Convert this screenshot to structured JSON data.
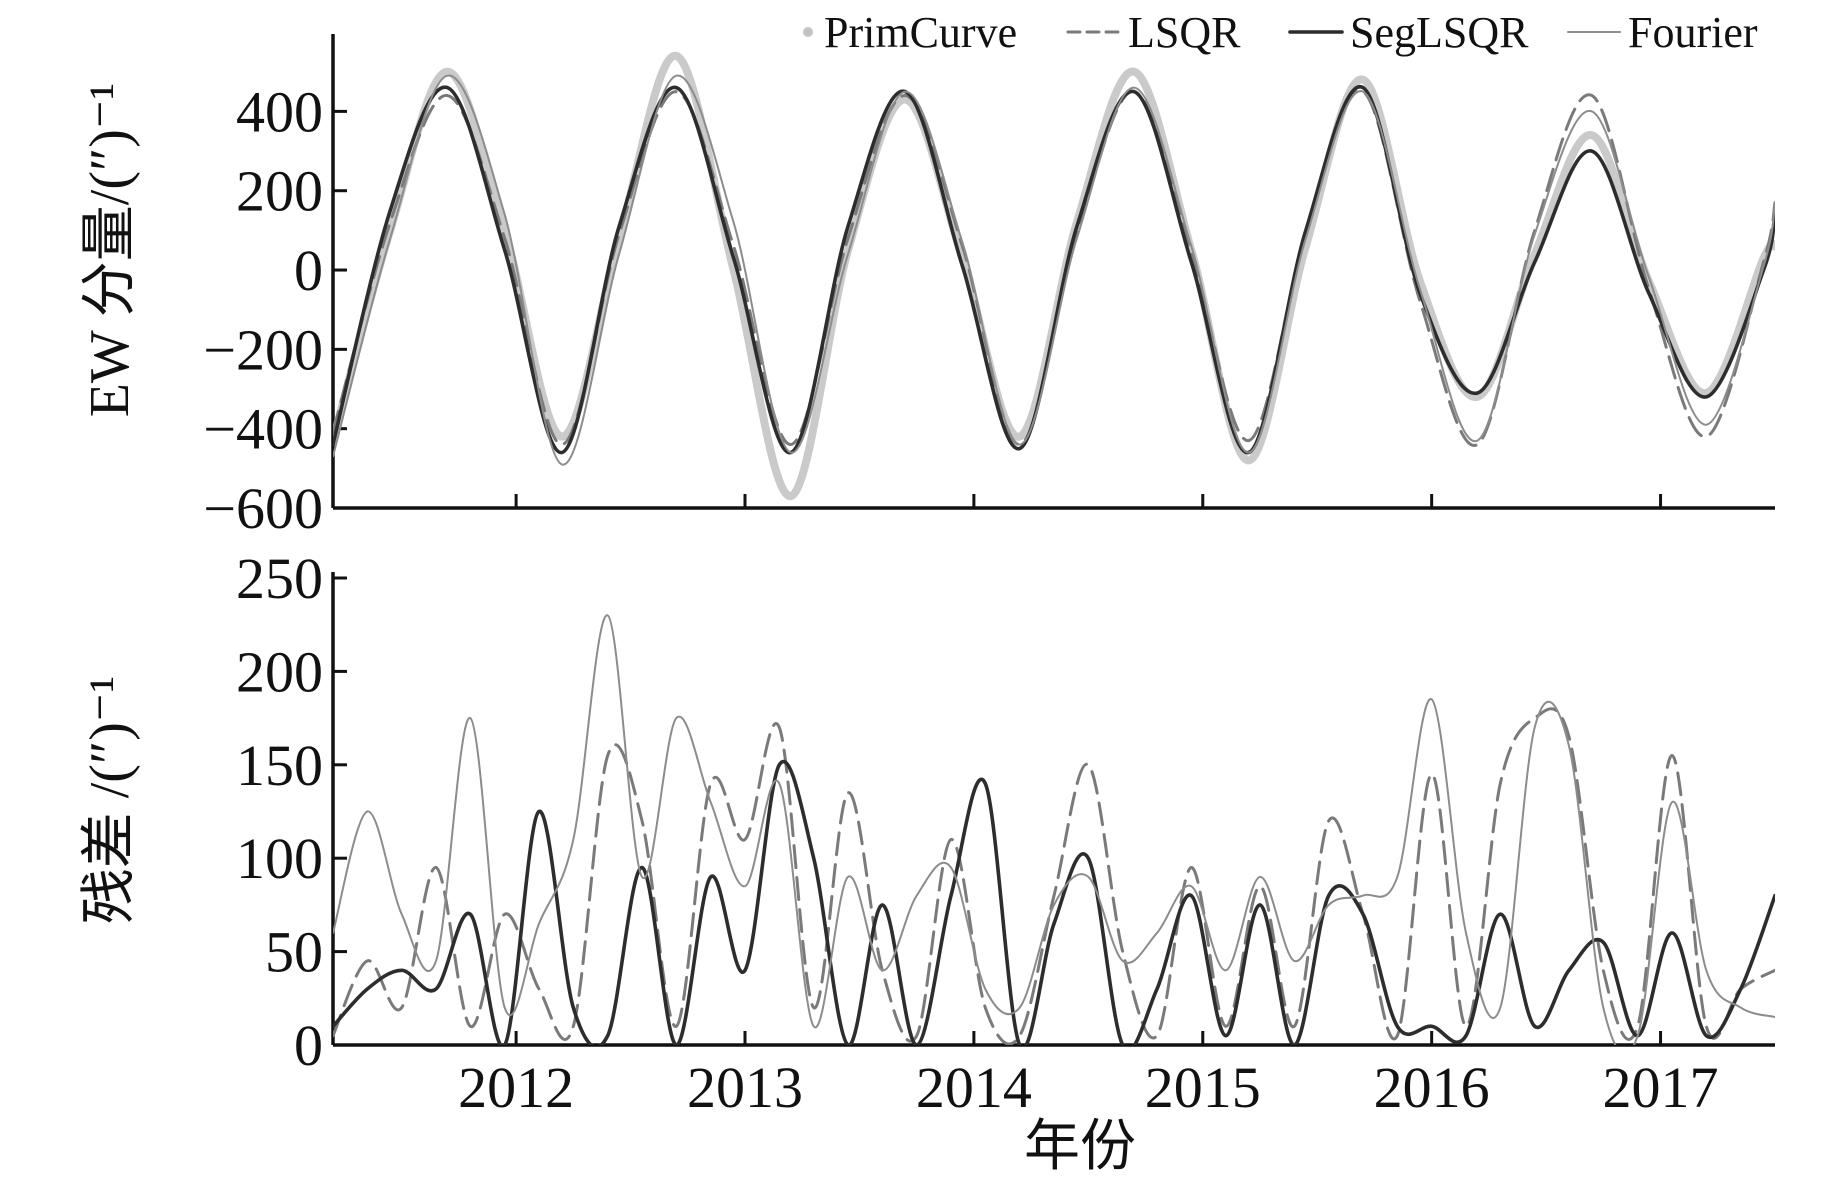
{
  "colors": {
    "PrimCurve": "#c4c4c4",
    "LSQR": "#7a7a7a",
    "SegLSQR": "#2d2d2d",
    "Fourier": "#8c8c8c"
  },
  "legend": [
    {
      "name": "PrimCurve",
      "style": "dot"
    },
    {
      "name": "LSQR",
      "style": "dashed"
    },
    {
      "name": "SegLSQR",
      "style": "solid-thick"
    },
    {
      "name": "Fourier",
      "style": "solid-thin"
    }
  ],
  "chart_data": [
    {
      "type": "line",
      "title": "",
      "xlabel": "",
      "ylabel": "EW 分量/(″)⁻¹",
      "xlim": [
        2011.2,
        2017.5
      ],
      "ylim": [
        -600,
        580
      ],
      "yticks": [
        -600,
        -400,
        -200,
        0,
        200,
        400
      ],
      "ytick_labels": [
        "−600",
        "−400",
        "−200",
        "0",
        "200",
        "400"
      ],
      "xticks": [
        2012,
        2013,
        2014,
        2015,
        2016,
        2017
      ],
      "x": [
        2011.2,
        2011.45,
        2011.7,
        2011.95,
        2012.2,
        2012.45,
        2012.7,
        2012.95,
        2013.2,
        2013.45,
        2013.7,
        2013.95,
        2014.2,
        2014.45,
        2014.7,
        2014.95,
        2015.2,
        2015.45,
        2015.7,
        2015.95,
        2016.2,
        2016.45,
        2016.7,
        2016.95,
        2017.2,
        2017.45,
        2017.5
      ],
      "series": [
        {
          "name": "PrimCurve",
          "values": [
            -430,
            100,
            500,
            100,
            -420,
            80,
            540,
            0,
            -570,
            50,
            430,
            30,
            -420,
            120,
            500,
            50,
            -480,
            60,
            480,
            -30,
            -320,
            40,
            340,
            -30,
            -310,
            30,
            60
          ]
        },
        {
          "name": "LSQR",
          "values": [
            -410,
            120,
            440,
            80,
            -440,
            90,
            450,
            60,
            -440,
            80,
            440,
            60,
            -440,
            90,
            450,
            40,
            -430,
            90,
            450,
            -80,
            -440,
            100,
            440,
            -50,
            -420,
            20,
            170
          ]
        },
        {
          "name": "SegLSQR",
          "values": [
            -440,
            150,
            460,
            50,
            -460,
            110,
            460,
            30,
            -460,
            110,
            450,
            10,
            -450,
            110,
            450,
            20,
            -460,
            100,
            460,
            -60,
            -310,
            20,
            300,
            -60,
            -320,
            0,
            140
          ]
        },
        {
          "name": "Fourier",
          "values": [
            -470,
            80,
            490,
            140,
            -490,
            40,
            490,
            120,
            -460,
            40,
            450,
            70,
            -440,
            80,
            460,
            60,
            -460,
            80,
            450,
            -50,
            -430,
            90,
            400,
            -20,
            -390,
            10,
            170
          ]
        }
      ]
    },
    {
      "type": "line",
      "title": "",
      "xlabel": "年份",
      "ylabel": "残差 /(″)⁻¹",
      "xlim": [
        2011.2,
        2017.5
      ],
      "ylim": [
        0,
        250
      ],
      "yticks": [
        0,
        50,
        100,
        150,
        200,
        250
      ],
      "ytick_labels": [
        "0",
        "50",
        "100",
        "150",
        "200",
        "250"
      ],
      "xticks": [
        2012,
        2013,
        2014,
        2015,
        2016,
        2017
      ],
      "xtick_labels": [
        "2012",
        "2013",
        "2014",
        "2015",
        "2016",
        "2017"
      ],
      "x": [
        2011.2,
        2011.35,
        2011.5,
        2011.65,
        2011.8,
        2011.95,
        2012.1,
        2012.25,
        2012.4,
        2012.55,
        2012.7,
        2012.85,
        2013.0,
        2013.15,
        2013.3,
        2013.45,
        2013.6,
        2013.75,
        2013.9,
        2014.05,
        2014.2,
        2014.35,
        2014.5,
        2014.65,
        2014.8,
        2014.95,
        2015.1,
        2015.25,
        2015.4,
        2015.55,
        2015.7,
        2015.85,
        2016.0,
        2016.15,
        2016.3,
        2016.45,
        2016.6,
        2016.75,
        2016.9,
        2017.05,
        2017.2,
        2017.35,
        2017.5
      ],
      "series": [
        {
          "name": "LSQR",
          "values": [
            5,
            45,
            20,
            95,
            10,
            70,
            30,
            10,
            155,
            120,
            10,
            140,
            110,
            170,
            20,
            135,
            40,
            5,
            110,
            20,
            5,
            80,
            150,
            50,
            5,
            95,
            10,
            85,
            10,
            120,
            70,
            5,
            145,
            10,
            140,
            175,
            165,
            40,
            10,
            155,
            10,
            30,
            40
          ]
        },
        {
          "name": "SegLSQR",
          "values": [
            10,
            30,
            40,
            30,
            70,
            0,
            125,
            20,
            5,
            95,
            0,
            90,
            40,
            150,
            100,
            0,
            75,
            0,
            80,
            140,
            0,
            65,
            100,
            0,
            30,
            80,
            5,
            75,
            0,
            80,
            70,
            10,
            10,
            5,
            70,
            10,
            40,
            55,
            5,
            60,
            5,
            30,
            80
          ]
        },
        {
          "name": "Fourier",
          "values": [
            60,
            125,
            70,
            45,
            175,
            20,
            65,
            110,
            230,
            90,
            175,
            130,
            85,
            140,
            10,
            90,
            40,
            80,
            95,
            30,
            20,
            75,
            90,
            45,
            60,
            85,
            40,
            90,
            45,
            75,
            80,
            90,
            185,
            60,
            20,
            170,
            160,
            20,
            5,
            130,
            40,
            20,
            15
          ]
        }
      ]
    }
  ]
}
